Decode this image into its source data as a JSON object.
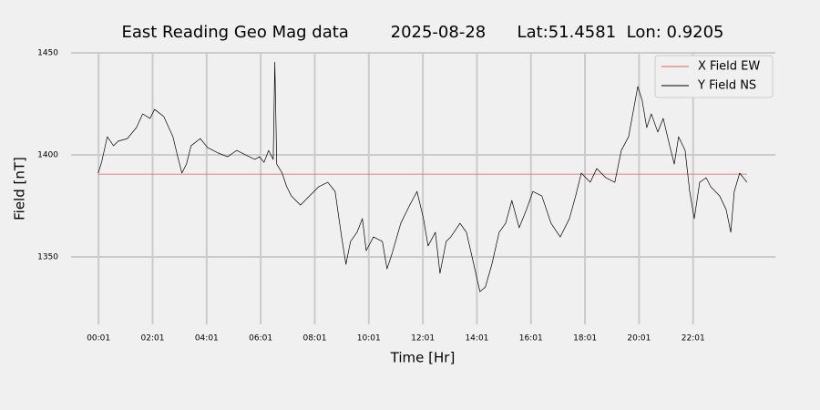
{
  "chart_data": {
    "type": "line",
    "title": "East Reading Geo Mag data        2025-08-28      Lat:51.4581  Lon: 0.9205",
    "xlabel": "Time  [Hr]",
    "ylabel": "Field  [nT]",
    "xlim": [
      -1.0,
      25.06
    ],
    "ylim": [
      1317,
      1450
    ],
    "xticks": [
      {
        "value": 0.0167,
        "label": "00:01"
      },
      {
        "value": 2.0167,
        "label": "02:01"
      },
      {
        "value": 4.0167,
        "label": "04:01"
      },
      {
        "value": 6.0167,
        "label": "06:01"
      },
      {
        "value": 8.0167,
        "label": "08:01"
      },
      {
        "value": 10.0167,
        "label": "10:01"
      },
      {
        "value": 12.0167,
        "label": "12:01"
      },
      {
        "value": 14.0167,
        "label": "14:01"
      },
      {
        "value": 16.0167,
        "label": "16:01"
      },
      {
        "value": 18.0167,
        "label": "18:01"
      },
      {
        "value": 20.0167,
        "label": "20:01"
      },
      {
        "value": 22.0167,
        "label": "22:01"
      }
    ],
    "yticks": [
      1350,
      1400,
      1450
    ],
    "grid": true,
    "legend": "upper right",
    "series": [
      {
        "name": "X Field EW",
        "color": "#e06060",
        "x": [
          0.0,
          24.01
        ],
        "values": [
          1390.6,
          1390.6
        ]
      },
      {
        "name": "Y Field NS",
        "color": "#000000",
        "x": [
          0.0,
          0.13,
          0.34,
          0.57,
          0.74,
          1.08,
          1.42,
          1.65,
          1.92,
          2.09,
          2.43,
          2.77,
          2.93,
          3.1,
          3.27,
          3.44,
          3.78,
          4.05,
          4.45,
          4.79,
          5.13,
          5.46,
          5.8,
          5.97,
          6.14,
          6.31,
          6.48,
          6.54,
          6.61,
          6.81,
          6.98,
          7.15,
          7.49,
          7.82,
          8.16,
          8.5,
          8.77,
          9.01,
          9.17,
          9.34,
          9.58,
          9.78,
          9.92,
          10.19,
          10.52,
          10.69,
          10.86,
          11.2,
          11.53,
          11.8,
          12.04,
          12.21,
          12.48,
          12.65,
          12.88,
          13.05,
          13.39,
          13.63,
          13.9,
          14.13,
          14.33,
          14.57,
          14.84,
          15.08,
          15.31,
          15.58,
          15.85,
          16.09,
          16.42,
          16.76,
          17.1,
          17.44,
          17.67,
          17.88,
          18.21,
          18.45,
          18.79,
          19.12,
          19.36,
          19.63,
          19.97,
          20.13,
          20.3,
          20.47,
          20.71,
          20.91,
          21.15,
          21.32,
          21.48,
          21.72,
          21.89,
          22.06,
          22.26,
          22.5,
          22.67,
          23.0,
          23.24,
          23.41,
          23.54,
          23.74,
          24.01
        ],
        "values": [
          1391.1,
          1396.4,
          1408.9,
          1404.5,
          1406.7,
          1408.0,
          1413.4,
          1420.1,
          1417.9,
          1422.3,
          1418.8,
          1408.9,
          1400.0,
          1391.1,
          1395.5,
          1404.5,
          1408.0,
          1403.6,
          1400.9,
          1399.1,
          1402.2,
          1400.0,
          1397.8,
          1399.1,
          1396.4,
          1402.2,
          1397.8,
          1445.5,
          1395.5,
          1391.1,
          1384.4,
          1379.9,
          1375.4,
          1379.9,
          1384.4,
          1386.6,
          1382.1,
          1359.8,
          1346.4,
          1357.6,
          1362.1,
          1368.8,
          1353.1,
          1359.8,
          1357.6,
          1344.2,
          1350.9,
          1366.5,
          1375.4,
          1382.1,
          1368.8,
          1355.4,
          1362.1,
          1342.0,
          1357.6,
          1359.8,
          1366.5,
          1362.1,
          1346.4,
          1333.0,
          1335.3,
          1346.4,
          1362.1,
          1366.5,
          1377.7,
          1364.3,
          1373.2,
          1382.1,
          1379.9,
          1366.5,
          1359.8,
          1368.8,
          1379.9,
          1391.1,
          1386.6,
          1393.3,
          1388.8,
          1386.6,
          1402.2,
          1408.9,
          1433.5,
          1426.8,
          1413.4,
          1420.1,
          1411.2,
          1417.9,
          1404.5,
          1395.5,
          1408.9,
          1402.2,
          1382.1,
          1368.8,
          1386.6,
          1388.8,
          1384.4,
          1379.9,
          1373.2,
          1362.1,
          1382.1,
          1391.1,
          1386.6
        ]
      }
    ]
  }
}
